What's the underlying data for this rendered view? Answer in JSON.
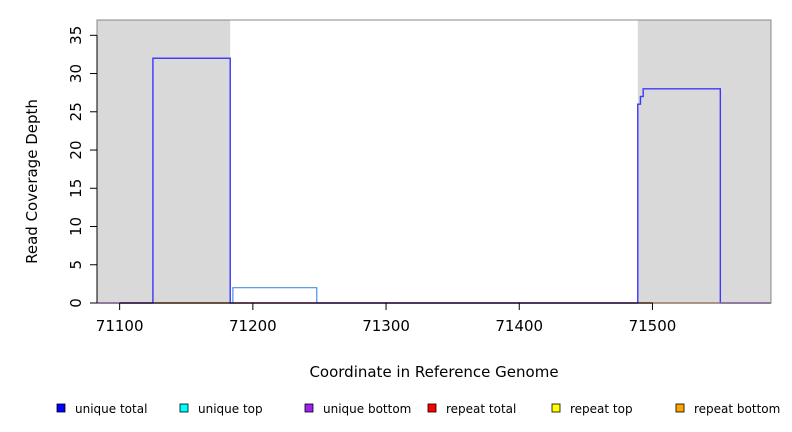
{
  "chart_data": {
    "type": "line",
    "xlabel": "Coordinate in Reference Genome",
    "ylabel": "Read Coverage Depth",
    "xlim": [
      71083,
      71589
    ],
    "ylim": [
      0,
      37
    ],
    "x_ticks": [
      71100,
      71200,
      71300,
      71400,
      71500
    ],
    "y_ticks": [
      0,
      5,
      10,
      15,
      20,
      25,
      30,
      35
    ],
    "shaded_regions": [
      {
        "x0": 71083,
        "x1": 71183,
        "color": "#d9d9d9"
      },
      {
        "x0": 71489,
        "x1": 71589,
        "color": "#d9d9d9"
      }
    ],
    "series": [
      {
        "name": "unique total",
        "color": "#0000ff",
        "points": [
          [
            71083,
            0
          ],
          [
            71125,
            0
          ],
          [
            71125,
            32
          ],
          [
            71183,
            32
          ],
          [
            71183,
            0
          ],
          [
            71489,
            0
          ],
          [
            71489,
            26
          ],
          [
            71491,
            26
          ],
          [
            71491,
            27
          ],
          [
            71493,
            27
          ],
          [
            71493,
            28
          ],
          [
            71551,
            28
          ],
          [
            71551,
            0
          ],
          [
            71589,
            0
          ]
        ]
      },
      {
        "name": "unique top",
        "color": "#00e5e5",
        "points": [
          [
            71083,
            0
          ],
          [
            71185,
            0
          ],
          [
            71185,
            2
          ],
          [
            71248,
            2
          ],
          [
            71248,
            0
          ],
          [
            71589,
            0
          ]
        ]
      },
      {
        "name": "unique bottom",
        "color": "#a020f0",
        "points": [
          [
            71083,
            0
          ],
          [
            71125,
            0
          ],
          [
            71125,
            32
          ],
          [
            71183,
            32
          ],
          [
            71183,
            0
          ],
          [
            71489,
            0
          ],
          [
            71489,
            26
          ],
          [
            71491,
            26
          ],
          [
            71491,
            27
          ],
          [
            71493,
            27
          ],
          [
            71493,
            28
          ],
          [
            71551,
            28
          ],
          [
            71551,
            0
          ],
          [
            71589,
            0
          ]
        ]
      },
      {
        "name": "repeat total",
        "color": "#ff0000",
        "points": [
          [
            71083,
            0
          ],
          [
            71589,
            0
          ]
        ]
      },
      {
        "name": "repeat top",
        "color": "#ffff00",
        "points": [
          [
            71083,
            0
          ],
          [
            71589,
            0
          ]
        ]
      },
      {
        "name": "repeat bottom",
        "color": "#ffa500",
        "points": [
          [
            71083,
            0
          ],
          [
            71589,
            0
          ]
        ]
      }
    ],
    "legend": [
      {
        "label": "unique total",
        "color": "#0000ff"
      },
      {
        "label": "unique top",
        "color": "#00ffff"
      },
      {
        "label": "unique bottom",
        "color": "#a020f0"
      },
      {
        "label": "repeat total",
        "color": "#ff0000"
      },
      {
        "label": "repeat top",
        "color": "#ffff00"
      },
      {
        "label": "repeat bottom",
        "color": "#ffa500"
      }
    ],
    "legend_position": "bottom",
    "grid": false
  }
}
